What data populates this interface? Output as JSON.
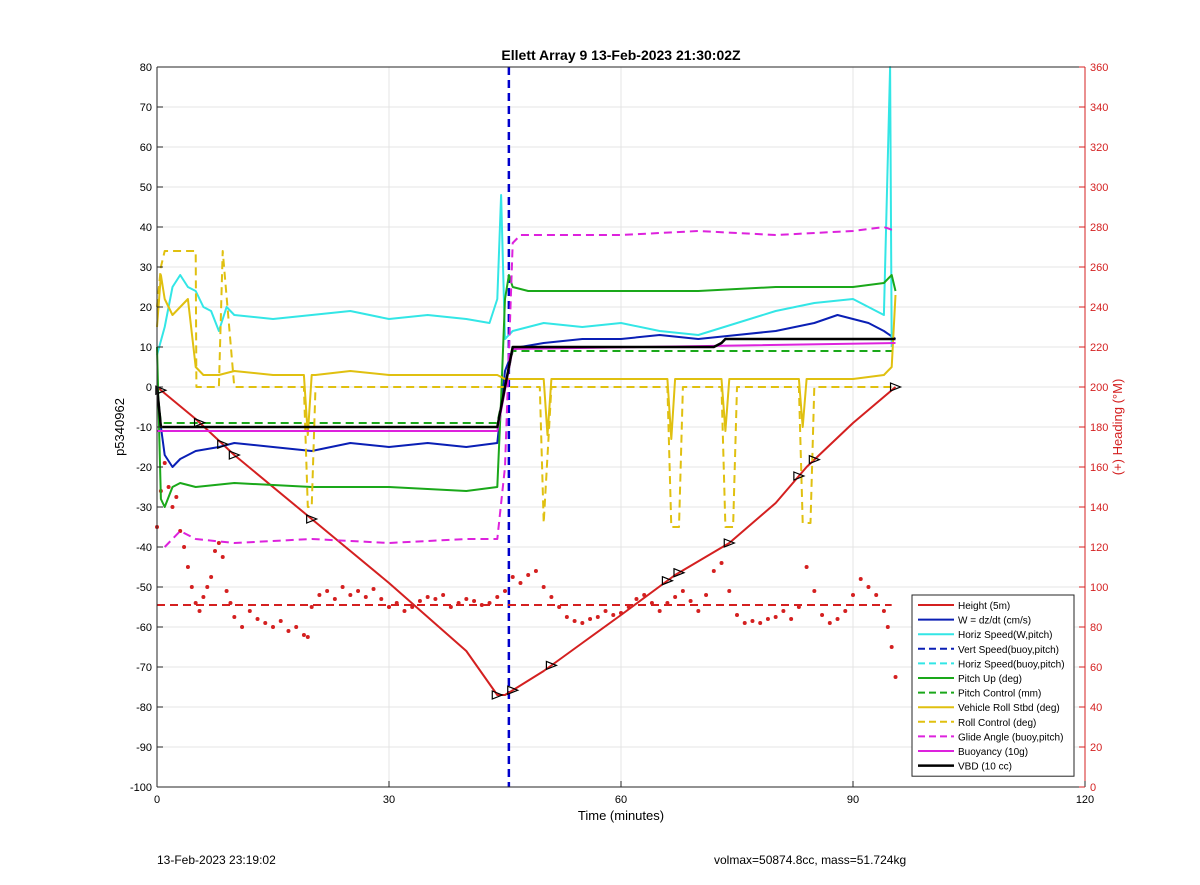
{
  "footer": {
    "timestamp": "13-Feb-2023 23:19:02",
    "summary": "volmax=50874.8cc, mass=51.724kg"
  },
  "chart_data": {
    "type": "line",
    "title": "Ellett Array 9 13-Feb-2023 21:30:02Z",
    "xlabel": "Time (minutes)",
    "ylabel_left": "p5340962",
    "ylabel_right": "(+) Heading (°M)",
    "xlim": [
      0,
      120
    ],
    "ylim_left": [
      -100,
      80
    ],
    "ylim_right": [
      0,
      360
    ],
    "xticks": [
      0,
      30,
      60,
      90,
      120
    ],
    "yticks_left": [
      -100,
      -90,
      -80,
      -70,
      -60,
      -50,
      -40,
      -30,
      -20,
      -10,
      0,
      10,
      20,
      30,
      40,
      50,
      60,
      70,
      80
    ],
    "yticks_right": [
      0,
      20,
      40,
      60,
      80,
      100,
      120,
      140,
      160,
      180,
      200,
      220,
      240,
      260,
      280,
      300,
      320,
      340,
      360
    ],
    "grid": true,
    "legend_position": "bottom-right",
    "colors": {
      "right_axis": "#d42020"
    },
    "vline": {
      "x": 45.5,
      "color": "#0000cc",
      "style": "dashed"
    },
    "series": [
      {
        "name": "Height (5m)",
        "color": "#d42020",
        "style": "solid",
        "width": 2,
        "x": [
          0,
          5,
          10,
          20,
          30,
          40,
          44,
          45,
          50,
          55,
          60,
          67,
          74,
          80,
          84,
          90,
          95.5
        ],
        "y": [
          0,
          -8,
          -17,
          -33,
          -49,
          -66,
          -77,
          -77,
          -71,
          -64,
          -57,
          -47,
          -39,
          -29,
          -20,
          -9,
          0
        ]
      },
      {
        "name": "W = dz/dt (cm/s)",
        "color": "#0a1fb5",
        "style": "solid",
        "width": 2,
        "x": [
          0,
          0.5,
          1,
          2,
          3,
          5,
          8,
          10,
          15,
          20,
          25,
          30,
          35,
          40,
          44,
          44.5,
          45,
          46,
          47,
          50,
          55,
          60,
          65,
          70,
          75,
          80,
          85,
          88,
          90,
          92,
          94,
          95.5
        ],
        "y": [
          0,
          -10,
          -17,
          -20,
          -18,
          -16,
          -15,
          -14,
          -15,
          -16,
          -14,
          -15,
          -14,
          -15,
          -14,
          -5,
          4,
          9,
          10,
          11,
          12,
          12,
          13,
          12,
          13,
          14,
          16,
          18,
          17,
          16,
          14,
          12
        ]
      },
      {
        "name": "Horiz Speed(W,pitch)",
        "color": "#33e6e6",
        "style": "solid",
        "width": 2,
        "x": [
          0,
          1,
          2,
          3,
          4,
          5,
          6,
          7,
          8,
          9,
          10,
          15,
          20,
          25,
          30,
          35,
          40,
          43,
          44,
          44.5,
          45,
          46,
          48,
          50,
          55,
          60,
          65,
          70,
          75,
          80,
          85,
          90,
          94,
          94.8,
          95
        ],
        "y": [
          8,
          15,
          25,
          28,
          25,
          24,
          20,
          19,
          14,
          20,
          18,
          17,
          18,
          19,
          17,
          18,
          17,
          16,
          22,
          48,
          12,
          14,
          15,
          16,
          15,
          16,
          14,
          13,
          16,
          19,
          21,
          22,
          18,
          80,
          10
        ]
      },
      {
        "name": "Vert Speed(buoy,pitch)",
        "color": "#0a1fb5",
        "style": "dashed",
        "width": 2,
        "x": [],
        "y": []
      },
      {
        "name": "Horiz Speed(buoy,pitch)",
        "color": "#33e6e6",
        "style": "dashed",
        "width": 2,
        "x": [],
        "y": []
      },
      {
        "name": "Pitch Up (deg)",
        "color": "#1aa81a",
        "style": "solid",
        "width": 2,
        "x": [
          0,
          0.5,
          1,
          2,
          3,
          5,
          10,
          20,
          30,
          40,
          44,
          44.5,
          45,
          45.5,
          46,
          48,
          55,
          60,
          70,
          80,
          90,
          94,
          95,
          95.5
        ],
        "y": [
          10,
          -28,
          -30,
          -25,
          -24,
          -25,
          -24,
          -25,
          -25,
          -26,
          -25,
          -3,
          22,
          28,
          25,
          24,
          24,
          24,
          24,
          25,
          25,
          26,
          28,
          24
        ]
      },
      {
        "name": "Pitch Control (mm)",
        "color": "#1aa81a",
        "style": "dashed",
        "width": 2,
        "x": [
          0,
          0.5,
          44,
          46,
          95.5
        ],
        "y": [
          0,
          -9,
          -9,
          9,
          9
        ]
      },
      {
        "name": "Vehicle Roll Stbd (deg)",
        "color": "#e0c010",
        "style": "solid",
        "width": 2,
        "x": [
          0,
          0.5,
          1,
          2,
          3,
          4,
          5,
          6,
          8,
          10,
          15,
          19,
          19.5,
          20,
          20.5,
          25,
          30,
          40,
          44,
          45,
          46,
          48,
          50,
          50.5,
          51,
          52,
          60,
          66,
          66.5,
          67,
          68,
          73,
          73.5,
          74,
          75,
          83,
          83.5,
          84,
          85,
          90,
          94,
          95,
          95.5
        ],
        "y": [
          15,
          28,
          22,
          18,
          20,
          22,
          5,
          3,
          3,
          4,
          3,
          3,
          -12,
          3,
          3,
          4,
          3,
          3,
          3,
          2,
          2,
          2,
          2,
          -12,
          2,
          2,
          2,
          2,
          -13,
          2,
          2,
          2,
          -11,
          2,
          2,
          2,
          -10,
          2,
          2,
          2,
          3,
          5,
          23
        ]
      },
      {
        "name": "Roll Control (deg)",
        "color": "#e0c010",
        "style": "dashed",
        "width": 2,
        "x": [
          0,
          0.5,
          1,
          5,
          5.1,
          5.5,
          8,
          8.5,
          10,
          19,
          19.5,
          20,
          20.5,
          44,
          49.5,
          50,
          51,
          66,
          66.5,
          67.5,
          68,
          73,
          73.5,
          74.5,
          75,
          83,
          83.5,
          84.5,
          85,
          95.5
        ],
        "y": [
          20,
          30,
          34,
          34,
          0,
          0,
          0,
          34,
          0,
          0,
          -30,
          -30,
          0,
          0,
          0,
          -34,
          0,
          0,
          -35,
          -35,
          0,
          0,
          -35,
          -35,
          0,
          0,
          -34,
          -34,
          0,
          0
        ]
      },
      {
        "name": "Glide Angle (buoy,pitch)",
        "color": "#dd22dd",
        "style": "dashed",
        "width": 2,
        "x": [
          1,
          3,
          5,
          10,
          20,
          30,
          40,
          44,
          45,
          46,
          47,
          50,
          60,
          70,
          80,
          90,
          94,
          95.5
        ],
        "y": [
          -40,
          -36,
          -38,
          -39,
          -38,
          -39,
          -38,
          -38,
          -20,
          36,
          38,
          38,
          38,
          39,
          38,
          39,
          40,
          39
        ]
      },
      {
        "name": "Buoyancy (10g)",
        "color": "#dd22dd",
        "style": "solid",
        "width": 2,
        "x": [
          0,
          1,
          44,
          46,
          95.5
        ],
        "y": [
          -11,
          -11,
          -11,
          9.5,
          11
        ]
      },
      {
        "name": "VBD (10 cc)",
        "color": "#000000",
        "style": "solid",
        "width": 2.5,
        "x": [
          0,
          0.5,
          44,
          46,
          47,
          72,
          73,
          73.5,
          95.5
        ],
        "y": [
          0,
          -10,
          -10,
          10,
          10,
          10,
          11,
          12,
          12
        ]
      }
    ],
    "heading_scatter": {
      "name": "Heading (°M)",
      "axis": "right",
      "color": "#d42020",
      "mean": 91,
      "mean_range": [
        0,
        95
      ],
      "x": [
        0,
        0.5,
        1,
        1.5,
        2,
        2.5,
        3,
        3.5,
        4,
        4.5,
        5,
        5.5,
        6,
        6.5,
        7,
        7.5,
        8,
        8.5,
        9,
        9.5,
        10,
        11,
        12,
        13,
        14,
        15,
        16,
        17,
        18,
        19,
        19.5,
        20,
        21,
        22,
        23,
        24,
        25,
        26,
        27,
        28,
        29,
        30,
        31,
        32,
        33,
        34,
        35,
        36,
        37,
        38,
        39,
        40,
        41,
        42,
        43,
        44,
        45,
        46,
        47,
        48,
        49,
        50,
        51,
        52,
        53,
        54,
        55,
        56,
        57,
        58,
        59,
        60,
        61,
        62,
        63,
        64,
        65,
        66,
        67,
        68,
        69,
        70,
        71,
        72,
        73,
        74,
        75,
        76,
        77,
        78,
        79,
        80,
        81,
        82,
        83,
        84,
        85,
        86,
        87,
        88,
        89,
        90,
        91,
        92,
        93,
        94,
        94.5,
        95,
        95.5
      ],
      "y": [
        130,
        148,
        162,
        150,
        140,
        145,
        128,
        120,
        110,
        100,
        92,
        88,
        95,
        100,
        105,
        118,
        122,
        115,
        98,
        92,
        85,
        80,
        88,
        84,
        82,
        80,
        83,
        78,
        80,
        76,
        75,
        90,
        96,
        98,
        94,
        100,
        96,
        98,
        95,
        99,
        94,
        90,
        92,
        88,
        90,
        93,
        95,
        94,
        96,
        90,
        92,
        94,
        93,
        91,
        92,
        95,
        98,
        105,
        102,
        106,
        108,
        100,
        95,
        90,
        85,
        83,
        82,
        84,
        85,
        88,
        86,
        87,
        90,
        94,
        96,
        92,
        88,
        92,
        95,
        98,
        93,
        88,
        96,
        108,
        112,
        98,
        86,
        82,
        83,
        82,
        84,
        85,
        88,
        84,
        90,
        110,
        98,
        86,
        82,
        84,
        88,
        96,
        104,
        100,
        96,
        88,
        80,
        70,
        55
      ]
    }
  }
}
